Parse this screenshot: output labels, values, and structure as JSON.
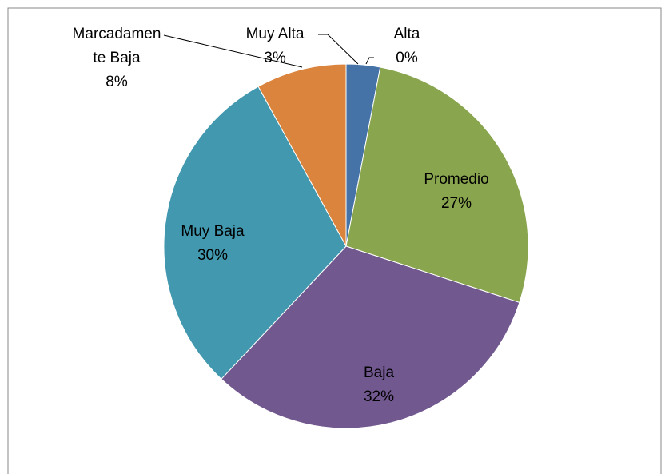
{
  "chart_data": {
    "type": "pie",
    "categories": [
      "Muy Alta",
      "Alta",
      "Promedio",
      "Baja",
      "Muy Baja",
      "Marcadamente Baja"
    ],
    "values": [
      3,
      0,
      27,
      32,
      30,
      8
    ],
    "value_labels": [
      "3%",
      "0%",
      "27%",
      "32%",
      "30%",
      "8%"
    ],
    "colors": [
      "#4572a7",
      "#aa4643",
      "#89a54e",
      "#71588f",
      "#4198af",
      "#db843d"
    ]
  }
}
